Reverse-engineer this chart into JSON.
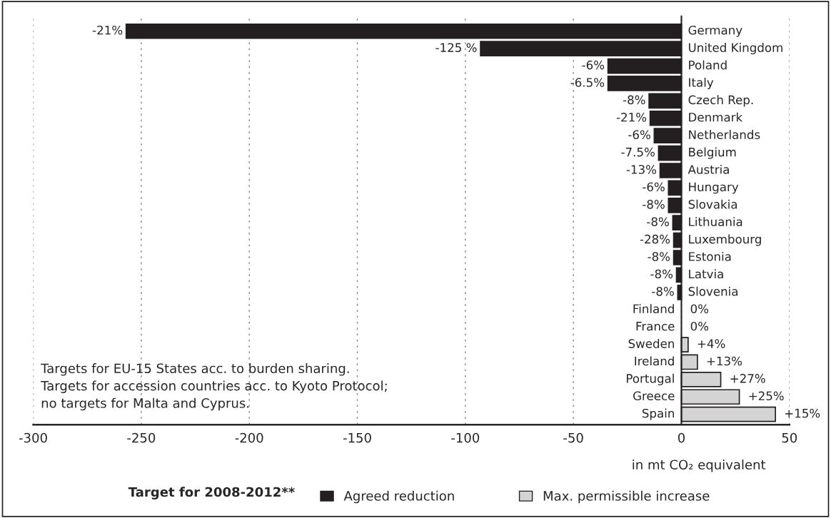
{
  "chart_data": {
    "type": "bar",
    "orientation": "horizontal",
    "categories": [
      "Germany",
      "United Kingdom",
      "Poland",
      "Italy",
      "Czech Rep.",
      "Denmark",
      "Netherlands",
      "Belgium",
      "Austria",
      "Hungary",
      "Slovakia",
      "Lithuania",
      "Luxembourg",
      "Estonia",
      "Latvia",
      "Slovenia",
      "Finland",
      "France",
      "Sweden",
      "Ireland",
      "Portugal",
      "Greece",
      "Spain"
    ],
    "series": [
      {
        "name": "Agreed reduction",
        "color": "#231f20",
        "values": [
          -257,
          -93,
          -34,
          -34,
          -15,
          -14.5,
          -12.6,
          -10.6,
          -9.9,
          -6,
          -6,
          -4,
          -3.6,
          -3.6,
          -2.3,
          -1.7,
          null,
          null,
          null,
          null,
          null,
          null,
          null
        ]
      },
      {
        "name": "Max. permissible increase",
        "color": "#d4d4d4",
        "values": [
          null,
          null,
          null,
          null,
          null,
          null,
          null,
          null,
          null,
          null,
          null,
          null,
          null,
          null,
          null,
          null,
          0,
          0,
          3.1,
          7.4,
          18.2,
          26.8,
          43.5
        ]
      }
    ],
    "xlim": [
      -300,
      50
    ],
    "xticks": [
      -300,
      -250,
      -200,
      -150,
      -100,
      -50,
      0,
      50
    ],
    "xlabel": "in mt CO₂ equivalent",
    "grid": "x",
    "legend": "bottom",
    "legend_title": "Target for 2008-2012**",
    "annotations": [
      "Targets for EU-15 States acc. to burden sharing.\nTargets for accession countries acc. to Kyoto Protocol;\nno targets for Malta and Cyprus.",
      {
        "text": "-21%",
        "x": -257,
        "y": "Germany"
      },
      {
        "text": "-125 %",
        "x": -93,
        "y": "United Kingdom"
      },
      {
        "text": "-6%",
        "x": -34,
        "y": "Poland"
      },
      {
        "text": "-6.5%",
        "x": -34,
        "y": "Italy"
      },
      {
        "text": "-8%",
        "x": -15,
        "y": "Czech Rep."
      },
      {
        "text": "-21%",
        "x": -14.5,
        "y": "Denmark"
      },
      {
        "text": "-6%",
        "x": -12.6,
        "y": "Netherlands"
      },
      {
        "text": "-7.5%",
        "x": -10.6,
        "y": "Belgium"
      },
      {
        "text": "-13%",
        "x": -9.9,
        "y": "Austria"
      },
      {
        "text": "-6%",
        "x": -6,
        "y": "Hungary"
      },
      {
        "text": "-8%",
        "x": -6,
        "y": "Slovakia"
      },
      {
        "text": "-8%",
        "x": -4,
        "y": "Lithuania"
      },
      {
        "text": "-28%",
        "x": -3.6,
        "y": "Luxembourg"
      },
      {
        "text": "-8%",
        "x": -3.6,
        "y": "Estonia"
      },
      {
        "text": "-8%",
        "x": -2.3,
        "y": "Latvia"
      },
      {
        "text": "-8%",
        "x": -1.7,
        "y": "Slovenia"
      },
      {
        "text": "0%",
        "x": 0,
        "y": "Finland"
      },
      {
        "text": "0%",
        "x": 0,
        "y": "France"
      },
      {
        "text": "+4%",
        "x": 3.1,
        "y": "Sweden"
      },
      {
        "text": "+13%",
        "x": 7.4,
        "y": "Ireland"
      },
      {
        "text": "+27%",
        "x": 18.2,
        "y": "Portugal"
      },
      {
        "text": "+25%",
        "x": 26.8,
        "y": "Greece"
      },
      {
        "text": "+15%",
        "x": 43.5,
        "y": "Spain"
      }
    ]
  }
}
